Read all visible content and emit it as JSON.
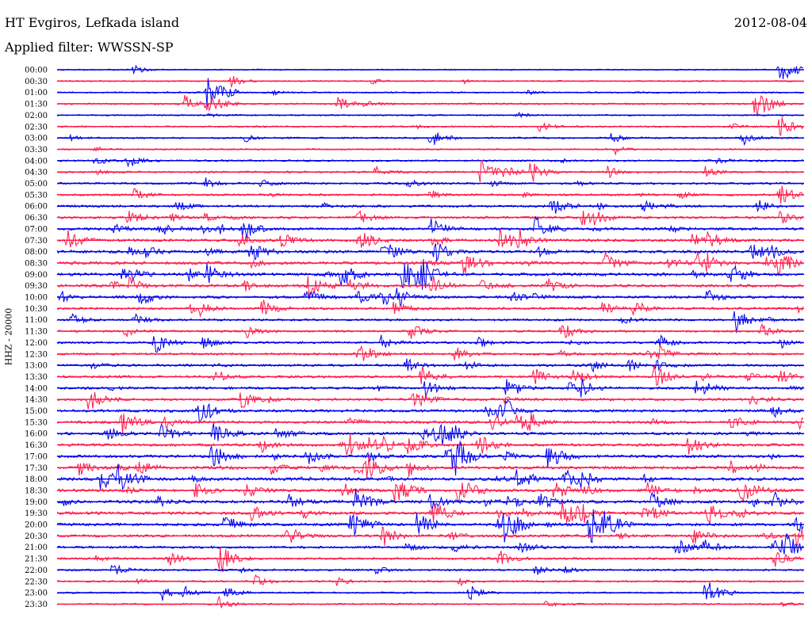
{
  "header": {
    "station": "HT Evgiros, Lefkada island",
    "date": "2012-08-04",
    "filter": "Applied filter: WWSSN-SP"
  },
  "chart_data": {
    "type": "line",
    "title": "HT Evgiros, Lefkada island",
    "ylabel": "HHZ - 20000",
    "colors": [
      "#0000ee",
      "#ff1a4b"
    ],
    "row_labels": [
      "00:00",
      "00:30",
      "01:00",
      "01:30",
      "02:00",
      "02:30",
      "03:00",
      "03:30",
      "04:00",
      "04:30",
      "05:00",
      "05:30",
      "06:00",
      "06:30",
      "07:00",
      "07:30",
      "08:00",
      "08:30",
      "09:00",
      "09:30",
      "10:00",
      "10:30",
      "11:00",
      "11:30",
      "12:00",
      "12:30",
      "13:00",
      "13:30",
      "14:00",
      "14:30",
      "15:00",
      "15:30",
      "16:00",
      "16:30",
      "17:00",
      "17:30",
      "18:00",
      "18:30",
      "19:00",
      "19:30",
      "20:00",
      "20:30",
      "21:00",
      "21:30",
      "22:00",
      "22:30",
      "23:00",
      "23:30"
    ],
    "row_activity": [
      0.1,
      0.15,
      0.2,
      0.3,
      0.2,
      0.25,
      0.3,
      0.2,
      0.35,
      0.4,
      0.45,
      0.5,
      0.55,
      0.6,
      0.7,
      0.75,
      0.8,
      0.85,
      0.85,
      0.8,
      0.7,
      0.6,
      0.5,
      0.45,
      0.5,
      0.55,
      0.6,
      0.65,
      0.65,
      0.65,
      0.7,
      0.7,
      0.75,
      0.75,
      0.8,
      0.85,
      0.9,
      0.9,
      0.9,
      0.85,
      0.8,
      0.7,
      0.6,
      0.5,
      0.45,
      0.35,
      0.3,
      0.25
    ],
    "events": [
      {
        "row": 0,
        "minute": 29,
        "amp": 18
      },
      {
        "row": 1,
        "minute": 7,
        "amp": 8
      },
      {
        "row": 2,
        "minute": 6,
        "amp": 22
      },
      {
        "row": 3,
        "minute": 6,
        "amp": 16
      },
      {
        "row": 3,
        "minute": 28,
        "amp": 20
      },
      {
        "row": 5,
        "minute": 29,
        "amp": 14
      },
      {
        "row": 6,
        "minute": 15,
        "amp": 12
      },
      {
        "row": 9,
        "minute": 17,
        "amp": 16
      },
      {
        "row": 9,
        "minute": 19,
        "amp": 14
      },
      {
        "row": 11,
        "minute": 29,
        "amp": 14
      },
      {
        "row": 13,
        "minute": 12,
        "amp": 12
      },
      {
        "row": 14,
        "minute": 15,
        "amp": 14
      },
      {
        "row": 17,
        "minute": 22,
        "amp": 14
      },
      {
        "row": 18,
        "minute": 27,
        "amp": 16
      },
      {
        "row": 20,
        "minute": 10,
        "amp": 12
      },
      {
        "row": 24,
        "minute": 4,
        "amp": 10
      },
      {
        "row": 24,
        "minute": 13,
        "amp": 10
      },
      {
        "row": 28,
        "minute": 18,
        "amp": 12
      },
      {
        "row": 31,
        "minute": 27,
        "amp": 12
      },
      {
        "row": 32,
        "minute": 2,
        "amp": 10
      },
      {
        "row": 35,
        "minute": 12,
        "amp": 10
      },
      {
        "row": 38,
        "minute": 15,
        "amp": 10
      },
      {
        "row": 42,
        "minute": 26,
        "amp": 12
      },
      {
        "row": 46,
        "minute": 26,
        "amp": 18
      }
    ]
  }
}
